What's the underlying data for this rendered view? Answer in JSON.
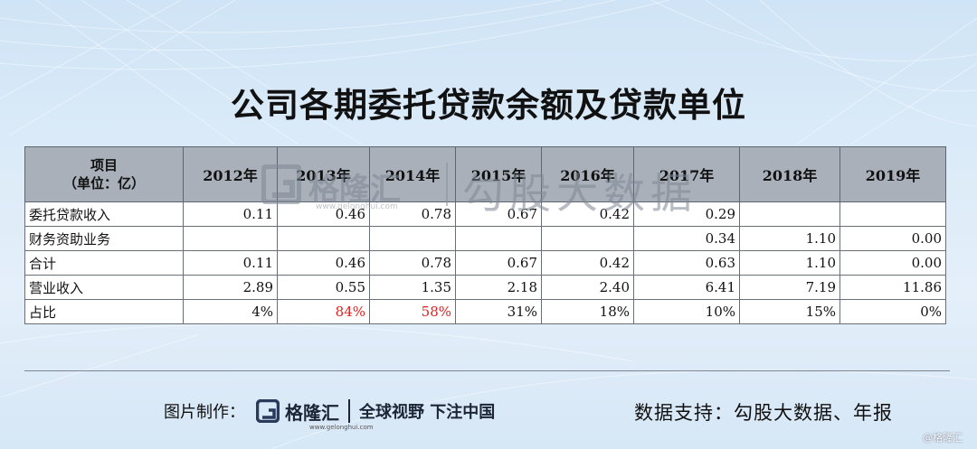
{
  "title": "公司各期委托贷款余额及贷款单位",
  "table": {
    "header_first_line1": "项目",
    "header_first_line2": "（单位：亿）",
    "years": [
      "2012年",
      "2013年",
      "2014年",
      "2015年",
      "2016年",
      "2017年",
      "2018年",
      "2019年"
    ],
    "rows": [
      {
        "label": "委托贷款收入",
        "values": [
          "0.11",
          "0.46",
          "0.78",
          "0.67",
          "0.42",
          "0.29",
          "",
          ""
        ]
      },
      {
        "label": "财务资助业务",
        "values": [
          "",
          "",
          "",
          "",
          "",
          "0.34",
          "1.10",
          "0.00"
        ]
      },
      {
        "label": "合计",
        "values": [
          "0.11",
          "0.46",
          "0.78",
          "0.67",
          "0.42",
          "0.63",
          "1.10",
          "0.00"
        ]
      },
      {
        "label": "营业收入",
        "values": [
          "2.89",
          "0.55",
          "1.35",
          "2.18",
          "2.40",
          "6.41",
          "7.19",
          "11.86"
        ]
      },
      {
        "label": "占比",
        "values": [
          "4%",
          "84%",
          "58%",
          "31%",
          "18%",
          "10%",
          "15%",
          "0%"
        ]
      }
    ],
    "highlight_color": "#e02020",
    "highlighted_cells": [
      "rows.4.values.1",
      "rows.4.values.2"
    ]
  },
  "watermark": {
    "brand": "格隆汇",
    "url": "www.gelonghui.com",
    "text": "勾股大数据"
  },
  "footer": {
    "made_by": "图片制作：",
    "brand": "格隆汇",
    "brand_url": "www.gelonghui.com",
    "slogan": "全球视野 下注中国",
    "source": "数据支持：勾股大数据、年报",
    "corner": "@格隆汇"
  },
  "colors": {
    "header_bg": "#a9b0b9",
    "background": "#dcebf8",
    "logo": "#2a3a5c"
  },
  "icons": {
    "brand_logo": "gelonghui-g-logo-icon"
  }
}
